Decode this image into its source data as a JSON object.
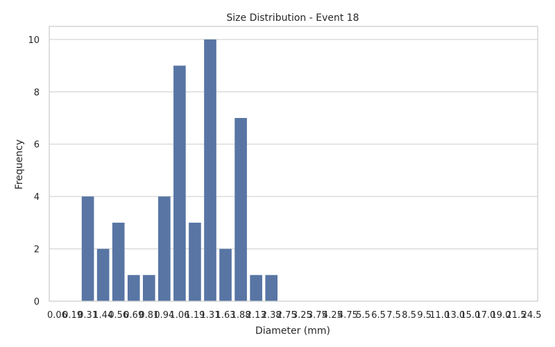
{
  "chart_data": {
    "type": "bar",
    "title": "Size Distribution - Event 18",
    "xlabel": "Diameter (mm)",
    "ylabel": "Frequency",
    "categories": [
      "0.06",
      "0.19",
      "0.31",
      "1.44",
      "0.56",
      "0.69",
      "0.81",
      "0.94",
      "1.06",
      "1.19",
      "1.31",
      "1.63",
      "1.88",
      "2.13",
      "2.38",
      "2.75",
      "3.25",
      "3.75",
      "4.25",
      "4.75",
      "5.5",
      "6.5",
      "7.5",
      "8.5",
      "9.5",
      "11.0",
      "13.0",
      "15.0",
      "17.0",
      "19.0",
      "21.5",
      "24.5"
    ],
    "values": [
      0,
      0,
      4,
      2,
      3,
      1,
      1,
      4,
      9,
      3,
      10,
      2,
      7,
      1,
      1,
      0,
      0,
      0,
      0,
      0,
      0,
      0,
      0,
      0,
      0,
      0,
      0,
      0,
      0,
      0,
      0,
      0
    ],
    "yticks": [
      0,
      2,
      4,
      6,
      8,
      10
    ],
    "ylim": [
      0,
      10.5
    ],
    "grid": true,
    "bar_color": "#5875a4",
    "grid_color": "#cccccc"
  }
}
